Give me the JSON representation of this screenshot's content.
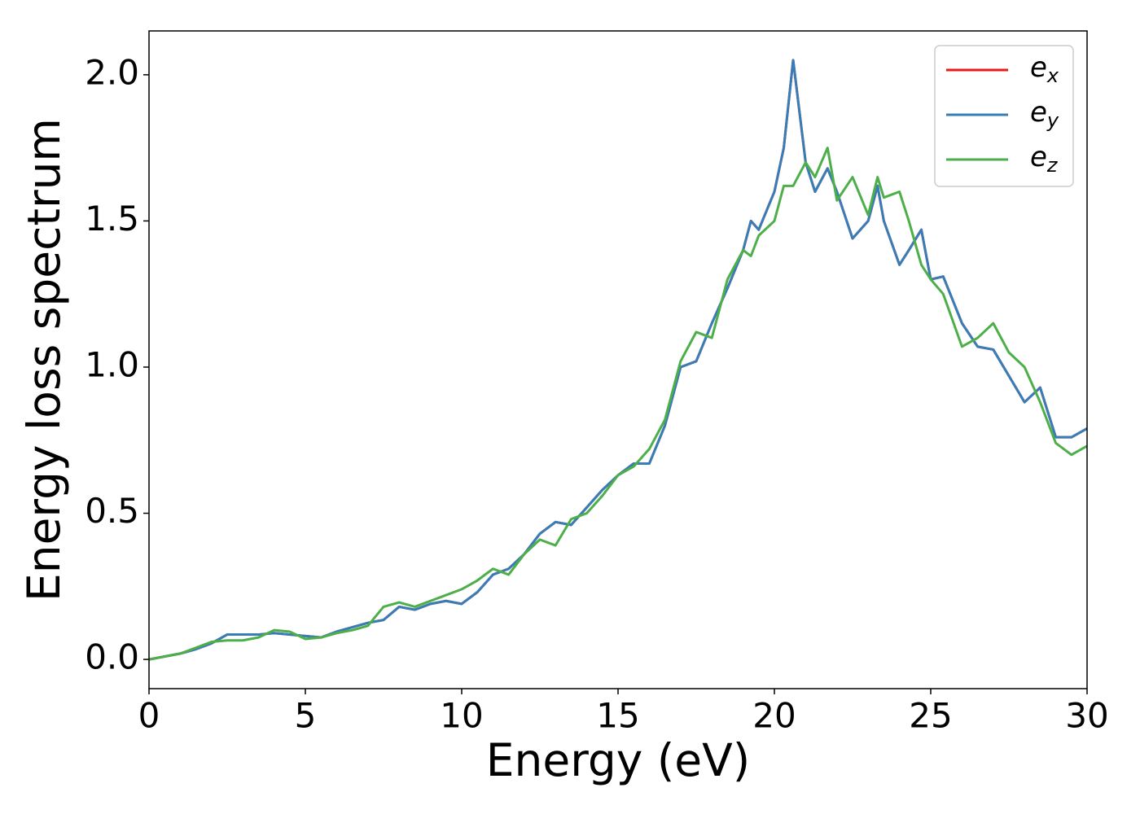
{
  "chart_data": {
    "type": "line",
    "xlabel": "Energy (eV)",
    "ylabel": "Energy loss spectrum",
    "x": [
      0,
      0.5,
      1,
      1.5,
      2,
      2.5,
      3,
      3.5,
      4,
      4.5,
      5,
      5.5,
      6,
      6.5,
      7,
      7.5,
      8,
      8.5,
      9,
      9.5,
      10,
      10.5,
      11,
      11.5,
      12,
      12.5,
      13,
      13.5,
      14,
      14.5,
      15,
      15.5,
      16,
      16.5,
      17,
      17.5,
      18,
      18.5,
      19,
      19.25,
      19.5,
      20,
      20.3,
      20.6,
      21,
      21.3,
      21.7,
      22,
      22.5,
      23,
      23.3,
      23.5,
      24,
      24.3,
      24.7,
      25,
      25.4,
      26,
      26.5,
      27,
      27.5,
      28,
      28.5,
      29,
      29.5,
      30
    ],
    "series": [
      {
        "name": "ex",
        "color": "#e41a1c",
        "values": [
          0,
          0.01,
          0.02,
          0.035,
          0.055,
          0.085,
          0.085,
          0.085,
          0.09,
          0.085,
          0.08,
          0.075,
          0.095,
          0.11,
          0.125,
          0.135,
          0.18,
          0.17,
          0.19,
          0.2,
          0.19,
          0.23,
          0.29,
          0.31,
          0.36,
          0.43,
          0.47,
          0.46,
          0.52,
          0.58,
          0.63,
          0.67,
          0.67,
          0.8,
          1.0,
          1.02,
          1.15,
          1.27,
          1.4,
          1.5,
          1.47,
          1.6,
          1.75,
          2.05,
          1.7,
          1.6,
          1.68,
          1.6,
          1.44,
          1.5,
          1.62,
          1.5,
          1.35,
          1.4,
          1.47,
          1.3,
          1.31,
          1.15,
          1.07,
          1.06,
          0.97,
          0.88,
          0.93,
          0.76,
          0.76,
          0.79
        ]
      },
      {
        "name": "ey",
        "color": "#377eb8",
        "values": [
          0,
          0.01,
          0.02,
          0.035,
          0.055,
          0.085,
          0.085,
          0.085,
          0.09,
          0.085,
          0.08,
          0.075,
          0.095,
          0.11,
          0.125,
          0.135,
          0.18,
          0.17,
          0.19,
          0.2,
          0.19,
          0.23,
          0.29,
          0.31,
          0.36,
          0.43,
          0.47,
          0.46,
          0.52,
          0.58,
          0.63,
          0.67,
          0.67,
          0.8,
          1.0,
          1.02,
          1.15,
          1.27,
          1.4,
          1.5,
          1.47,
          1.6,
          1.75,
          2.05,
          1.7,
          1.6,
          1.68,
          1.6,
          1.44,
          1.5,
          1.62,
          1.5,
          1.35,
          1.4,
          1.47,
          1.3,
          1.31,
          1.15,
          1.07,
          1.06,
          0.97,
          0.88,
          0.93,
          0.76,
          0.76,
          0.79
        ]
      },
      {
        "name": "ez",
        "color": "#4daf4a",
        "values": [
          0,
          0.01,
          0.02,
          0.04,
          0.06,
          0.065,
          0.065,
          0.075,
          0.1,
          0.095,
          0.07,
          0.075,
          0.09,
          0.1,
          0.115,
          0.18,
          0.195,
          0.18,
          0.2,
          0.22,
          0.24,
          0.27,
          0.31,
          0.29,
          0.36,
          0.41,
          0.39,
          0.48,
          0.5,
          0.56,
          0.63,
          0.66,
          0.72,
          0.82,
          1.02,
          1.12,
          1.1,
          1.3,
          1.4,
          1.38,
          1.45,
          1.5,
          1.62,
          1.62,
          1.7,
          1.65,
          1.75,
          1.57,
          1.65,
          1.52,
          1.65,
          1.58,
          1.6,
          1.5,
          1.35,
          1.3,
          1.25,
          1.07,
          1.1,
          1.15,
          1.05,
          1.0,
          0.88,
          0.74,
          0.7,
          0.73
        ]
      }
    ],
    "xlim": [
      0,
      30
    ],
    "xticks": [
      0,
      5,
      10,
      15,
      20,
      25,
      30
    ],
    "ylim": [
      -0.1,
      2.15
    ],
    "yticks": [
      {
        "value": 0,
        "label": "0.0"
      },
      0.5,
      {
        "value": 1,
        "label": "1.0"
      },
      1.5,
      {
        "value": 2,
        "label": "2.0"
      }
    ],
    "grid": false,
    "legend": "upper right"
  }
}
